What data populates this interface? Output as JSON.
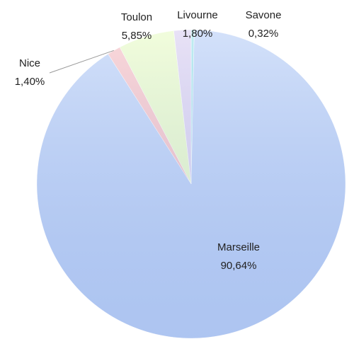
{
  "chart_data": {
    "type": "pie",
    "categories": [
      "Savone",
      "Marseille",
      "Nice",
      "Toulon",
      "Livourne"
    ],
    "values": [
      0.32,
      90.64,
      1.4,
      5.85,
      1.8
    ],
    "value_labels": [
      "0,32%",
      "90,64%",
      "1,40%",
      "5,85%",
      "1,80%"
    ],
    "colors": [
      "#9fe3ea",
      "#bcd1f7",
      "#f8c3c6",
      "#eafcc9",
      "#dcd2f1"
    ]
  }
}
